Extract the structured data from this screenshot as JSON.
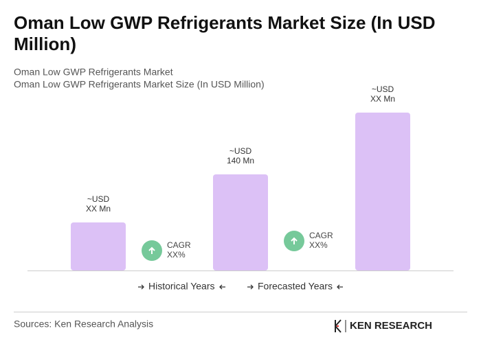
{
  "chart_data": {
    "type": "bar",
    "title": "Oman Low GWP Refrigerants Market Size (In USD Million)",
    "subtitle": [
      "Oman Low GWP Refrigerants Market",
      "Oman Low GWP Refrigerants Market Size (In USD Million)"
    ],
    "categories": [
      null,
      null,
      null
    ],
    "values": [
      70,
      140,
      230
    ],
    "value_labels": [
      [
        "~USD",
        "XX Mn"
      ],
      [
        "~USD",
        "140 Mn"
      ],
      [
        "~USD",
        "XX Mn"
      ]
    ],
    "color": "#dcc1f6",
    "ylim": [
      0,
      230
    ],
    "annotations": [
      [
        "CAGR",
        "XX%"
      ],
      [
        "CAGR",
        "XX%"
      ]
    ],
    "legend": [
      "Historical Years",
      "Forecasted Years"
    ],
    "source": "Sources: Ken Research Analysis",
    "brand": "KEN RESEARCH"
  }
}
